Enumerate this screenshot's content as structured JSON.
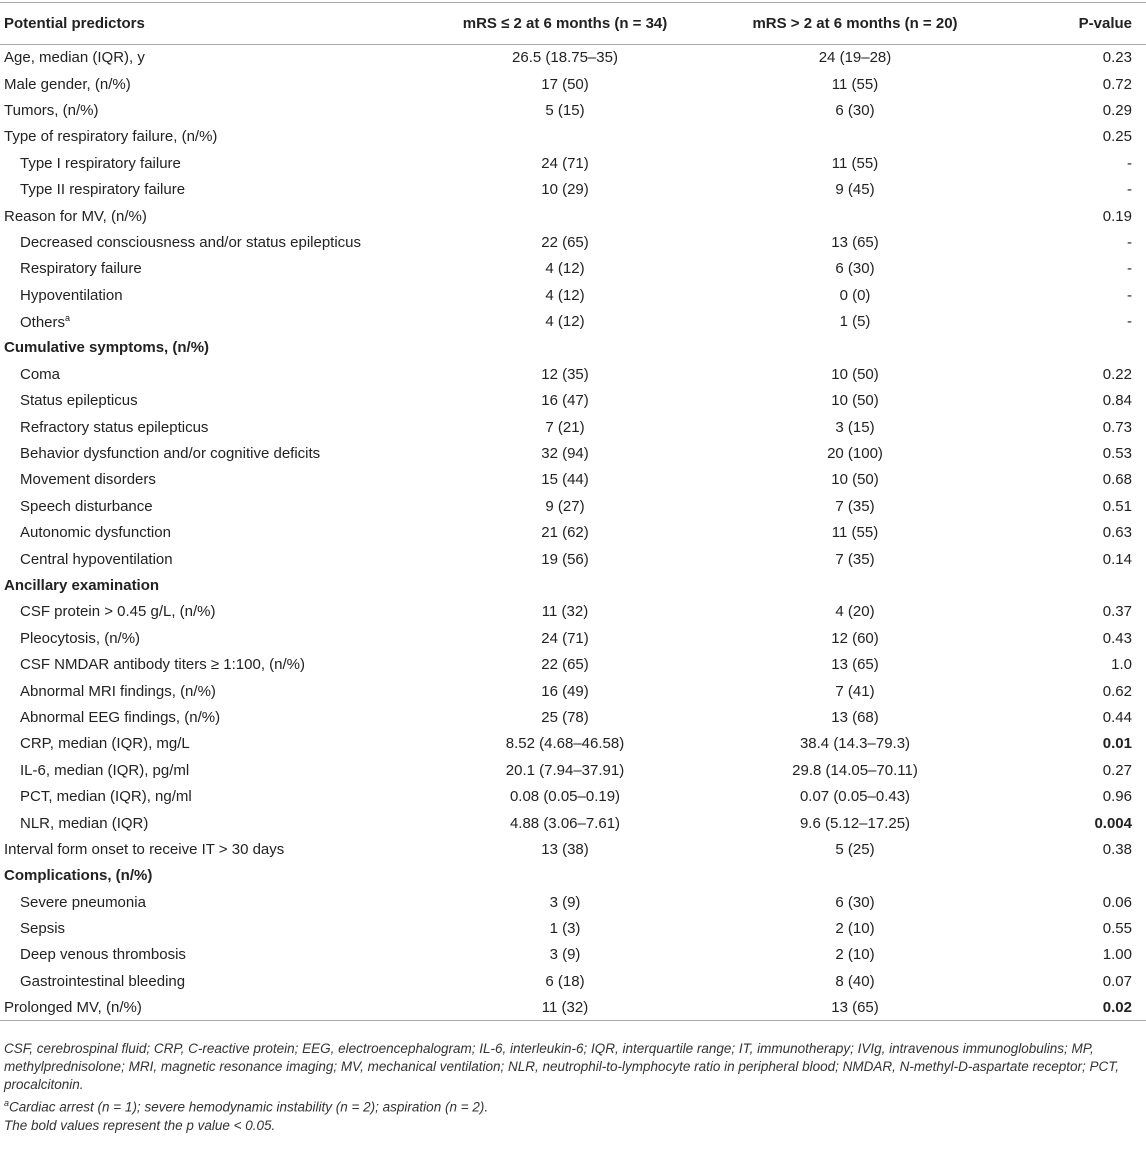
{
  "table": {
    "header": [
      "Potential predictors",
      "mRS ≤ 2 at 6 months (n = 34)",
      "mRS > 2 at 6 months (n = 20)",
      "P-value"
    ],
    "rows": [
      {
        "label": "Age, median (IQR), y",
        "a": "26.5 (18.75–35)",
        "b": "24 (19–28)",
        "p": "0.23"
      },
      {
        "label": "Male gender, (n/%)",
        "a": "17 (50)",
        "b": "11 (55)",
        "p": "0.72"
      },
      {
        "label": "Tumors, (n/%)",
        "a": "5 (15)",
        "b": "6 (30)",
        "p": "0.29"
      },
      {
        "label": "Type of respiratory failure, (n/%)",
        "p": "0.25"
      },
      {
        "label": "Type I respiratory failure",
        "indent": true,
        "a": "24 (71)",
        "b": "11 (55)",
        "p": "-"
      },
      {
        "label": "Type II respiratory failure",
        "indent": true,
        "a": "10 (29)",
        "b": "9 (45)",
        "p": "-"
      },
      {
        "label": "Reason for MV, (n/%)",
        "p": "0.19"
      },
      {
        "label": "Decreased consciousness and/or status epilepticus",
        "indent": true,
        "a": "22 (65)",
        "b": "13 (65)",
        "p": "-"
      },
      {
        "label": "Respiratory failure",
        "indent": true,
        "a": "4 (12)",
        "b": "6 (30)",
        "p": "-"
      },
      {
        "label": "Hypoventilation",
        "indent": true,
        "a": "4 (12)",
        "b": "0 (0)",
        "p": "-"
      },
      {
        "label": "Others",
        "sup": "a",
        "indent": true,
        "a": "4 (12)",
        "b": "1 (5)",
        "p": "-"
      },
      {
        "label": "Cumulative symptoms, (n/%)",
        "section": true
      },
      {
        "label": "Coma",
        "indent": true,
        "a": "12 (35)",
        "b": "10 (50)",
        "p": "0.22"
      },
      {
        "label": "Status epilepticus",
        "indent": true,
        "a": "16 (47)",
        "b": "10 (50)",
        "p": "0.84"
      },
      {
        "label": "Refractory status epilepticus",
        "indent": true,
        "a": "7 (21)",
        "b": "3 (15)",
        "p": "0.73"
      },
      {
        "label": "Behavior dysfunction and/or cognitive deficits",
        "indent": true,
        "a": "32 (94)",
        "b": "20 (100)",
        "p": "0.53"
      },
      {
        "label": "Movement disorders",
        "indent": true,
        "a": "15 (44)",
        "b": "10 (50)",
        "p": "0.68"
      },
      {
        "label": "Speech disturbance",
        "indent": true,
        "a": "9 (27)",
        "b": "7 (35)",
        "p": "0.51"
      },
      {
        "label": "Autonomic dysfunction",
        "indent": true,
        "a": "21 (62)",
        "b": "11 (55)",
        "p": "0.63"
      },
      {
        "label": "Central hypoventilation",
        "indent": true,
        "a": "19 (56)",
        "b": "7 (35)",
        "p": "0.14"
      },
      {
        "label": "Ancillary examination",
        "section": true
      },
      {
        "label": "CSF protein > 0.45 g/L, (n/%)",
        "indent": true,
        "a": "11 (32)",
        "b": "4 (20)",
        "p": "0.37"
      },
      {
        "label": "Pleocytosis, (n/%)",
        "indent": true,
        "a": "24 (71)",
        "b": "12 (60)",
        "p": "0.43"
      },
      {
        "label": "CSF NMDAR antibody titers ≥ 1:100, (n/%)",
        "indent": true,
        "a": "22 (65)",
        "b": "13 (65)",
        "p": "1.0"
      },
      {
        "label": "Abnormal MRI findings, (n/%)",
        "indent": true,
        "a": "16 (49)",
        "b": "7 (41)",
        "p": "0.62"
      },
      {
        "label": "Abnormal EEG findings, (n/%)",
        "indent": true,
        "a": "25 (78)",
        "b": "13 (68)",
        "p": "0.44"
      },
      {
        "label": "CRP, median (IQR), mg/L",
        "indent": true,
        "a": "8.52 (4.68–46.58)",
        "b": "38.4 (14.3–79.3)",
        "p": "0.01",
        "bold_p": true
      },
      {
        "label": "IL-6, median (IQR), pg/ml",
        "indent": true,
        "a": "20.1 (7.94–37.91)",
        "b": "29.8 (14.05–70.11)",
        "p": "0.27"
      },
      {
        "label": "PCT, median (IQR), ng/ml",
        "indent": true,
        "a": "0.08 (0.05–0.19)",
        "b": "0.07 (0.05–0.43)",
        "p": "0.96"
      },
      {
        "label": "NLR, median (IQR)",
        "indent": true,
        "a": "4.88 (3.06–7.61)",
        "b": "9.6 (5.12–17.25)",
        "p": "0.004",
        "bold_p": true
      },
      {
        "label": "Interval form onset to receive IT > 30 days",
        "a": "13 (38)",
        "b": "5 (25)",
        "p": "0.38"
      },
      {
        "label": "Complications, (n/%)",
        "section": true
      },
      {
        "label": "Severe pneumonia",
        "indent": true,
        "a": "3 (9)",
        "b": "6 (30)",
        "p": "0.06"
      },
      {
        "label": "Sepsis",
        "indent": true,
        "a": "1 (3)",
        "b": "2 (10)",
        "p": "0.55"
      },
      {
        "label": "Deep venous thrombosis",
        "indent": true,
        "a": "3 (9)",
        "b": "2 (10)",
        "p": "1.00"
      },
      {
        "label": "Gastrointestinal bleeding",
        "indent": true,
        "a": "6 (18)",
        "b": "8 (40)",
        "p": "0.07"
      },
      {
        "label": "Prolonged MV, (n/%)",
        "a": "11 (32)",
        "b": "13 (65)",
        "p": "0.02",
        "bold_p": true
      }
    ]
  },
  "notes": [
    {
      "text": "CSF, cerebrospinal fluid; CRP, C-reactive protein; EEG, electroencephalogram; IL-6, interleukin-6; IQR, interquartile range; IT, immunotherapy; IVIg, intravenous immunoglobulins; MP, methylprednisolone; MRI, magnetic resonance imaging; MV, mechanical ventilation; NLR, neutrophil-to-lymphocyte ratio in peripheral blood; NMDAR, N-methyl-D-aspartate receptor; PCT, procalcitonin."
    },
    {
      "sup": "a",
      "text": "Cardiac arrest (n = 1); severe hemodynamic instability (n = 2); aspiration (n = 2)."
    },
    {
      "text": "The bold values represent the p value < 0.05."
    }
  ]
}
